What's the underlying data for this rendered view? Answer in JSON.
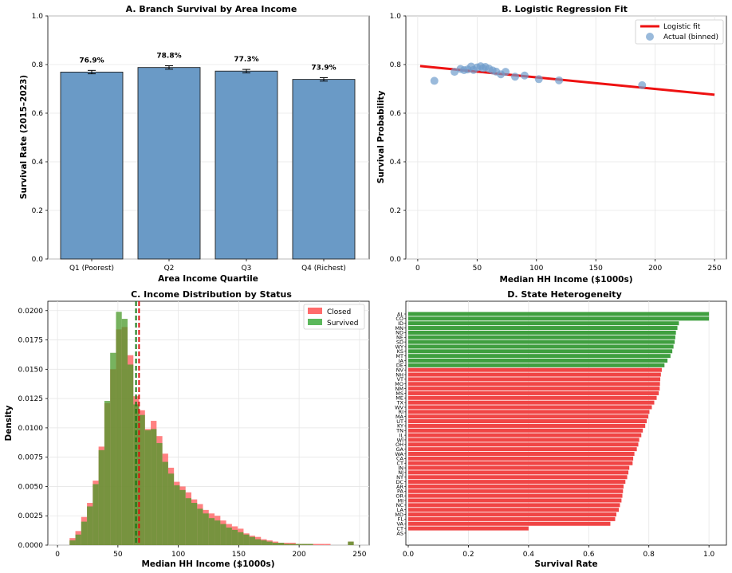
{
  "colors": {
    "bar_blue": "#6a9ac6",
    "red": "#ee1111",
    "green": "#2e9a2e",
    "hist_red": "#ff6b6b",
    "hist_green": "#5cb85c",
    "scatter": "#6f9ccc"
  },
  "chart_data": [
    {
      "panel": "A",
      "type": "bar",
      "title": "A. Branch Survival by Area Income",
      "xlabel": "Area Income Quartile",
      "ylabel": "Survival Rate (2015–2023)",
      "categories": [
        "Q1 (Poorest)",
        "Q2",
        "Q3",
        "Q4 (Richest)"
      ],
      "values": [
        0.769,
        0.788,
        0.773,
        0.739
      ],
      "errors": [
        0.007,
        0.007,
        0.007,
        0.007
      ],
      "labels": [
        "76.9%",
        "78.8%",
        "77.3%",
        "73.9%"
      ],
      "ylim": [
        0,
        1.0
      ],
      "yticks": [
        "0.0",
        "0.2",
        "0.4",
        "0.6",
        "0.8",
        "1.0"
      ]
    },
    {
      "panel": "B",
      "type": "scatter",
      "title": "B. Logistic Regression Fit",
      "xlabel": "Median HH Income ($1000s)",
      "ylabel": "Survival Probability",
      "xlim": [
        -10,
        260
      ],
      "ylim": [
        0,
        1.0
      ],
      "xticks": [
        "0",
        "50",
        "100",
        "150",
        "200",
        "250"
      ],
      "yticks": [
        "0.0",
        "0.2",
        "0.4",
        "0.6",
        "0.8",
        "1.0"
      ],
      "legend": [
        "Logistic fit",
        "Actual (binned)"
      ],
      "fit_line": {
        "x": [
          2,
          250
        ],
        "y": [
          0.794,
          0.676
        ]
      },
      "points": [
        [
          14,
          0.733
        ],
        [
          31,
          0.77
        ],
        [
          36,
          0.782
        ],
        [
          39,
          0.777
        ],
        [
          42,
          0.78
        ],
        [
          45,
          0.792
        ],
        [
          47,
          0.778
        ],
        [
          50,
          0.788
        ],
        [
          53,
          0.793
        ],
        [
          55,
          0.785
        ],
        [
          57,
          0.79
        ],
        [
          60,
          0.783
        ],
        [
          63,
          0.776
        ],
        [
          66,
          0.771
        ],
        [
          70,
          0.76
        ],
        [
          74,
          0.77
        ],
        [
          82,
          0.75
        ],
        [
          90,
          0.755
        ],
        [
          102,
          0.74
        ],
        [
          119,
          0.735
        ],
        [
          189,
          0.715
        ]
      ]
    },
    {
      "panel": "C",
      "type": "histogram",
      "title": "C. Income Distribution by Status",
      "xlabel": "Median HH Income ($1000s)",
      "ylabel": "Density",
      "xlim": [
        -8,
        258
      ],
      "ylim": [
        0,
        0.0208
      ],
      "xticks": [
        "0",
        "50",
        "100",
        "150",
        "200",
        "250"
      ],
      "yticks": [
        "0.0000",
        "0.0025",
        "0.0050",
        "0.0075",
        "0.0100",
        "0.0125",
        "0.0150",
        "0.0175",
        "0.0200"
      ],
      "legend": [
        "Closed",
        "Survived"
      ],
      "bin_start": 10,
      "bin_width": 4.8,
      "closed": [
        0.0006,
        0.0012,
        0.0024,
        0.0036,
        0.0055,
        0.0084,
        0.0121,
        0.015,
        0.0184,
        0.0186,
        0.0162,
        0.0127,
        0.0115,
        0.0099,
        0.0106,
        0.0093,
        0.0078,
        0.0066,
        0.0054,
        0.005,
        0.0045,
        0.0039,
        0.0035,
        0.003,
        0.0027,
        0.0025,
        0.0021,
        0.0018,
        0.0016,
        0.0014,
        0.001,
        0.0008,
        0.0007,
        0.0005,
        0.0004,
        0.0003,
        0.0002,
        0.0002,
        0.0002,
        0.0001,
        0.0001,
        0.0001,
        0.0001,
        0.0001,
        0.0001,
        0.0,
        0.0,
        0.0,
        0.0003
      ],
      "survived": [
        0.0004,
        0.0009,
        0.002,
        0.0033,
        0.0052,
        0.0081,
        0.0123,
        0.0164,
        0.0199,
        0.0193,
        0.0154,
        0.012,
        0.0111,
        0.0098,
        0.0099,
        0.0087,
        0.0071,
        0.0061,
        0.0051,
        0.0047,
        0.004,
        0.0036,
        0.0031,
        0.0027,
        0.0023,
        0.0021,
        0.0018,
        0.0015,
        0.0013,
        0.0011,
        0.0009,
        0.0007,
        0.0005,
        0.0004,
        0.0003,
        0.0002,
        0.0002,
        0.0001,
        0.0001,
        0.0001,
        0.0001,
        0.0001,
        0.0,
        0.0,
        0.0,
        0.0,
        0.0,
        0.0,
        0.0003
      ],
      "mean_closed": 67.5,
      "mean_survived": 65.0
    },
    {
      "panel": "D",
      "type": "barh",
      "title": "D. State Heterogeneity",
      "xlabel": "Survival Rate",
      "xlim": [
        0,
        1.05
      ],
      "xticks": [
        "0.0",
        "0.2",
        "0.4",
        "0.6",
        "0.8",
        "1.0"
      ],
      "states": [
        "AL",
        "CO",
        "ID",
        "MN",
        "ND",
        "NE",
        "SD",
        "WY",
        "KS",
        "MT",
        "IA",
        "DE",
        "NV",
        "NH",
        "VT",
        "MO",
        "NM",
        "MS",
        "ME",
        "TX",
        "WV",
        "RI",
        "MA",
        "UT",
        "KY",
        "TN",
        "IL",
        "WI",
        "OH",
        "GA",
        "WA",
        "CA",
        "CT",
        "IN",
        "NJ",
        "NY",
        "DC",
        "AR",
        "PA",
        "OR",
        "MI",
        "NC",
        "LA",
        "MD",
        "FL",
        "VA",
        "CT",
        "AS"
      ],
      "values": [
        1.0,
        1.0,
        0.9,
        0.895,
        0.89,
        0.888,
        0.886,
        0.882,
        0.878,
        0.872,
        0.862,
        0.852,
        0.843,
        0.84,
        0.838,
        0.837,
        0.836,
        0.833,
        0.826,
        0.818,
        0.81,
        0.802,
        0.798,
        0.793,
        0.788,
        0.78,
        0.775,
        0.768,
        0.765,
        0.76,
        0.752,
        0.748,
        0.746,
        0.735,
        0.732,
        0.728,
        0.722,
        0.716,
        0.714,
        0.712,
        0.709,
        0.704,
        0.7,
        0.692,
        0.688,
        0.672,
        0.4,
        0.0
      ],
      "survived_count": 12
    }
  ]
}
